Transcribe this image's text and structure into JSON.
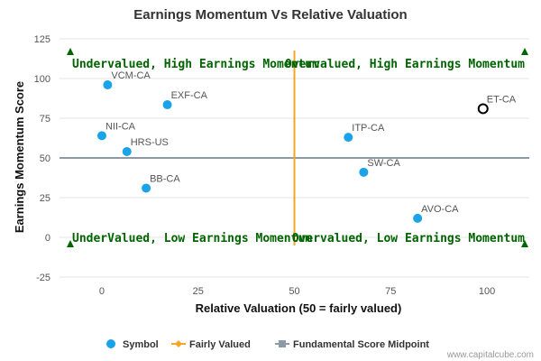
{
  "colors": {
    "symbol": "#1aa3e8",
    "highlight_stroke": "#000000",
    "fairly_valued": "#f5a623",
    "midpoint": "#8c9aa6",
    "quadrant_text": "#006400",
    "arrow": "#006400",
    "grid": "#e6e6e6"
  },
  "chart_data": {
    "type": "scatter",
    "title": "Earnings Momentum Vs Relative Valuation",
    "xlabel": "Relative Valuation (50 = fairly valued)",
    "ylabel": "Earnings Momentum Score",
    "xlim": [
      -11,
      111
    ],
    "ylim": [
      -25,
      125
    ],
    "xticks": [
      0,
      25,
      50,
      75,
      100
    ],
    "yticks": [
      -25,
      0,
      25,
      50,
      75,
      100,
      125
    ],
    "grid": "horizontal",
    "legend_position": "bottom",
    "points": [
      {
        "label": "VCM-CA",
        "x": 1.5,
        "y": 96
      },
      {
        "label": "EXF-CA",
        "x": 17,
        "y": 83.5
      },
      {
        "label": "NII-CA",
        "x": 0,
        "y": 64
      },
      {
        "label": "HRS-US",
        "x": 6.5,
        "y": 54
      },
      {
        "label": "BB-CA",
        "x": 11.5,
        "y": 31
      },
      {
        "label": "ITP-CA",
        "x": 64,
        "y": 63
      },
      {
        "label": "SW-CA",
        "x": 68,
        "y": 41
      },
      {
        "label": "AVO-CA",
        "x": 82,
        "y": 12
      },
      {
        "label": "ET-CA",
        "x": 99,
        "y": 81,
        "highlighted": true
      }
    ],
    "fairly_valued_x": 50,
    "midpoint_y": 50,
    "quadrant_labels": [
      {
        "text": "Undervalued, High Earnings Momentum",
        "position": "top-left"
      },
      {
        "text": "Overvalued, High Earnings Momentum",
        "position": "top-right"
      },
      {
        "text": "UnderValued, Low Earnings Momentum",
        "position": "bottom-left"
      },
      {
        "text": "Overvalued, Low Earnings Momentum",
        "position": "bottom-right"
      }
    ],
    "legend": [
      {
        "name": "Symbol",
        "marker": "circle"
      },
      {
        "name": "Fairly Valued",
        "marker": "diamond-line"
      },
      {
        "name": "Fundamental Score Midpoint",
        "marker": "square-line"
      }
    ]
  },
  "credit": "www.capitalcube.com"
}
